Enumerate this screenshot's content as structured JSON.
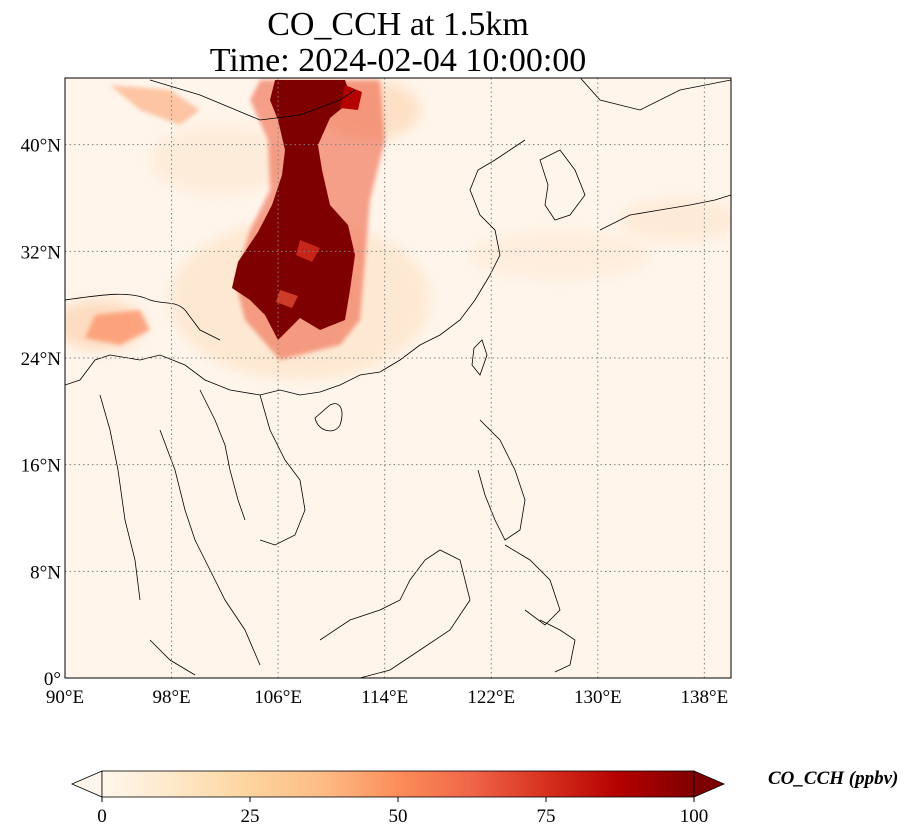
{
  "title": {
    "line1": "CO_CCH at 1.5km",
    "line2": "Time: 2024-02-04 10:00:00"
  },
  "map": {
    "projection": "PlateCarree",
    "lon_range": [
      90,
      140
    ],
    "lat_range": [
      0,
      45
    ],
    "lon_ticks": [
      {
        "value": 90,
        "label": "90°E"
      },
      {
        "value": 98,
        "label": "98°E"
      },
      {
        "value": 106,
        "label": "106°E"
      },
      {
        "value": 114,
        "label": "114°E"
      },
      {
        "value": 122,
        "label": "122°E"
      },
      {
        "value": 130,
        "label": "130°E"
      },
      {
        "value": 138,
        "label": "138°E"
      }
    ],
    "lat_ticks": [
      {
        "value": 0,
        "label": "0°"
      },
      {
        "value": 8,
        "label": "8°N"
      },
      {
        "value": 16,
        "label": "16°N"
      },
      {
        "value": 24,
        "label": "24°N"
      },
      {
        "value": 32,
        "label": "32°N"
      },
      {
        "value": 40,
        "label": "40°N"
      }
    ],
    "gridlines": "dotted",
    "background_color": "#fff5eb",
    "plume_color": "#7f0000"
  },
  "colorbar": {
    "label": "CO_CCH (ppbv)",
    "colormap": "OrRd",
    "range": [
      0,
      100
    ],
    "extend": "both",
    "ticks": [
      {
        "value": 0,
        "label": "0"
      },
      {
        "value": 25,
        "label": "25"
      },
      {
        "value": 50,
        "label": "50"
      },
      {
        "value": 75,
        "label": "75"
      },
      {
        "value": 100,
        "label": "100"
      }
    ],
    "colors": [
      "#fff7ec",
      "#fee8c8",
      "#fdd49e",
      "#fdbb84",
      "#fc8d59",
      "#ef6548",
      "#d7301f",
      "#b30000",
      "#7f0000"
    ]
  }
}
